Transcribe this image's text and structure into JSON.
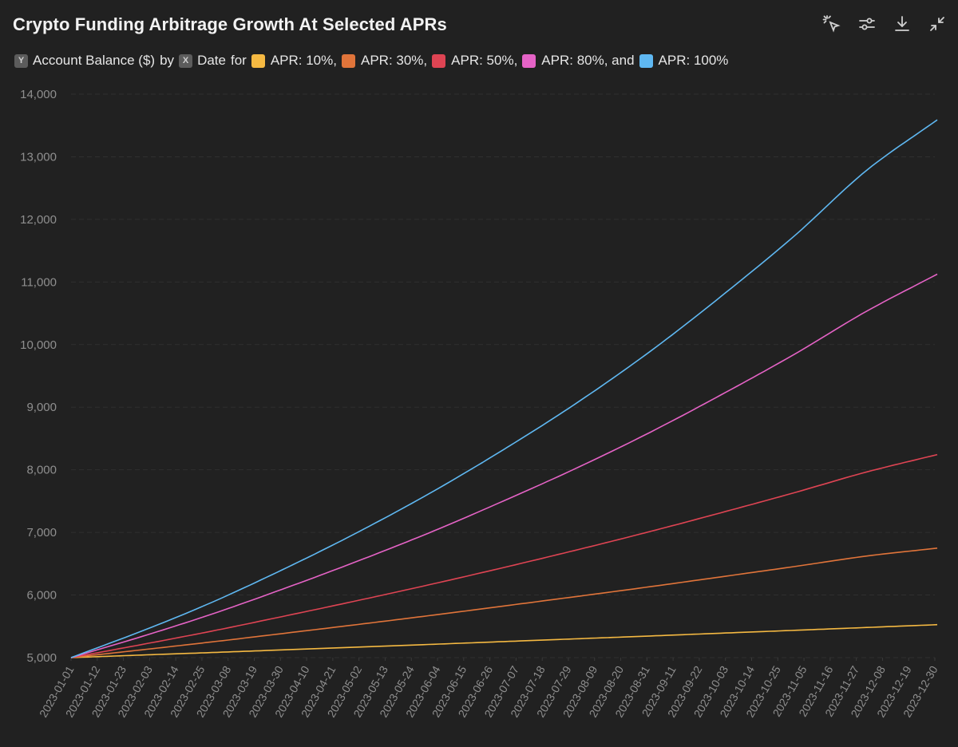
{
  "header": {
    "title": "Crypto Funding Arbitrage Growth At Selected APRs"
  },
  "toolbar": {
    "icons": [
      "select-cursor-icon",
      "sliders-icon",
      "download-icon",
      "collapse-icon"
    ]
  },
  "legend": {
    "y_chip": "Y",
    "y_text": "Account Balance ($)",
    "by_text": "by",
    "x_chip": "X",
    "x_text": "Date",
    "for_text": "for",
    "entries": [
      {
        "label": "APR: 10%,"
      },
      {
        "label": "APR: 30%,"
      },
      {
        "label": "APR: 50%,"
      },
      {
        "label": "APR: 80%, and"
      },
      {
        "label": "APR: 100%"
      }
    ]
  },
  "chart_data": {
    "type": "line",
    "title": "Crypto Funding Arbitrage Growth At Selected APRs",
    "xlabel": "Date",
    "ylabel": "Account Balance ($)",
    "ylim": [
      5000,
      14000
    ],
    "yticks": [
      "5,000",
      "6,000",
      "7,000",
      "8,000",
      "9,000",
      "10,000",
      "11,000",
      "12,000",
      "13,000",
      "14,000"
    ],
    "xticks": [
      "2023-01-01",
      "2023-01-12",
      "2023-01-23",
      "2023-02-03",
      "2023-02-14",
      "2023-02-25",
      "2023-03-08",
      "2023-03-19",
      "2023-03-30",
      "2023-04-10",
      "2023-04-21",
      "2023-05-02",
      "2023-05-13",
      "2023-05-24",
      "2023-06-04",
      "2023-06-15",
      "2023-06-26",
      "2023-07-07",
      "2023-07-18",
      "2023-07-29",
      "2023-08-09",
      "2023-08-20",
      "2023-08-31",
      "2023-09-11",
      "2023-09-22",
      "2023-10-03",
      "2023-10-14",
      "2023-10-25",
      "2023-11-05",
      "2023-11-16",
      "2023-11-27",
      "2023-12-08",
      "2023-12-19",
      "2023-12-30"
    ],
    "x": [
      "2023-01-01",
      "2023-02-01",
      "2023-03-01",
      "2023-04-01",
      "2023-05-01",
      "2023-06-01",
      "2023-07-01",
      "2023-08-01",
      "2023-09-01",
      "2023-10-01",
      "2023-11-01",
      "2023-12-01",
      "2023-12-31"
    ],
    "grid": true,
    "legend_position": "top-left",
    "series": [
      {
        "name": "APR: 10%",
        "color": "#f5b942",
        "values": [
          5000,
          5043,
          5081,
          5125,
          5167,
          5211,
          5255,
          5300,
          5345,
          5390,
          5436,
          5481,
          5526
        ]
      },
      {
        "name": "APR: 30%",
        "color": "#e0743a",
        "values": [
          5000,
          5130,
          5250,
          5390,
          5527,
          5673,
          5820,
          5974,
          6131,
          6289,
          6455,
          6621,
          6749
        ]
      },
      {
        "name": "APR: 50%",
        "color": "#de4453",
        "values": [
          5000,
          5218,
          5422,
          5666,
          5908,
          6168,
          6432,
          6715,
          7011,
          7313,
          7635,
          7962,
          8243
        ]
      },
      {
        "name": "APR: 80%",
        "color": "#e563c6",
        "values": [
          5000,
          5352,
          5693,
          6109,
          6535,
          7001,
          7490,
          8020,
          8592,
          9194,
          9846,
          10526,
          11125
        ]
      },
      {
        "name": "APR: 100%",
        "color": "#5fb8f2",
        "values": [
          5000,
          5443,
          5880,
          6425,
          6993,
          7630,
          8305,
          9055,
          9881,
          10765,
          11737,
          12773,
          13590
        ]
      }
    ]
  }
}
